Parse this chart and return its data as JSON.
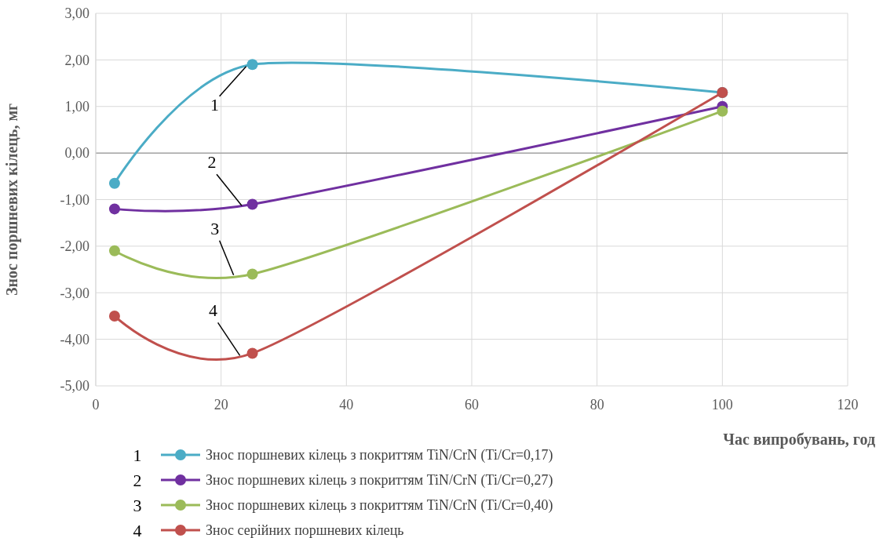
{
  "chart_data": {
    "type": "line",
    "xlabel": "Час випробувань, год",
    "ylabel": "Знос поршневих кілець, мг",
    "x": [
      3,
      25,
      100
    ],
    "series": [
      {
        "name": "Знос поршневих кілець  з покриттям TiN/CrN  (Ti/Cr=0,17)",
        "color": "#4bacc6",
        "values": [
          -0.65,
          1.9,
          1.3
        ]
      },
      {
        "name": "Знос поршневих кілець  з покриттям TiN/CrN  (Ti/Cr=0,27)",
        "color": "#7030a0",
        "values": [
          -1.2,
          -1.1,
          1.0
        ]
      },
      {
        "name": "Знос поршневих кілець  з покриттям TiN/CrN  (Ti/Cr=0,40)",
        "color": "#9bbb59",
        "values": [
          -2.1,
          -2.6,
          0.9
        ]
      },
      {
        "name": "Знос серійних поршневих кілець",
        "color": "#c0504d",
        "values": [
          -3.5,
          -4.3,
          1.3
        ]
      }
    ],
    "annotations": [
      {
        "text": "1",
        "x": 24,
        "y": 1.86
      },
      {
        "text": "2",
        "x": 23.3,
        "y": -1.13
      },
      {
        "text": "3",
        "x": 22,
        "y": -2.62
      },
      {
        "text": "4",
        "x": 23,
        "y": -4.35
      }
    ],
    "xlim": [
      0,
      120
    ],
    "xticks": [
      0,
      20,
      40,
      60,
      80,
      100,
      120
    ],
    "ylim": [
      -5,
      3
    ],
    "yticks": [
      {
        "value": -5,
        "label": "-5,00"
      },
      {
        "value": -4,
        "label": "-4,00"
      },
      {
        "value": -3,
        "label": "-3,00"
      },
      {
        "value": -2,
        "label": "-2,00"
      },
      {
        "value": -1,
        "label": "-1,00"
      },
      {
        "value": 0,
        "label": "0,00"
      },
      {
        "value": 1,
        "label": "1,00"
      },
      {
        "value": 2,
        "label": "2,00"
      },
      {
        "value": 3,
        "label": "3,00"
      }
    ],
    "grid": true,
    "legend": "bottom",
    "marker": "circle",
    "line_style": "solid"
  }
}
